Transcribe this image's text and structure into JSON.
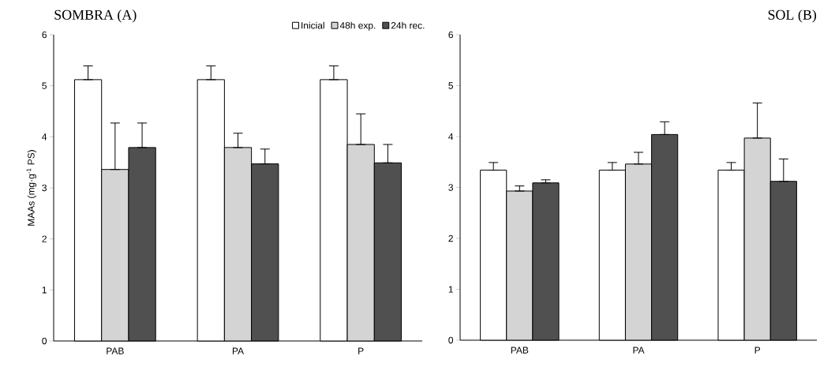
{
  "chart_data": [
    {
      "type": "bar",
      "title": "SOMBRA (A)",
      "ylabel": "MAAs (mg·g$^{-1}$ PS)",
      "categories": [
        "PAB",
        "PA",
        "P"
      ],
      "ylim": [
        0,
        6
      ],
      "yticks": [
        0,
        1,
        2,
        3,
        4,
        5,
        6
      ],
      "legend": "top",
      "series": [
        {
          "name": "Inicial",
          "color": "#ffffff",
          "values": [
            5.12,
            5.12,
            5.12
          ],
          "errors": [
            [
              5.12,
              5.39
            ],
            [
              5.12,
              5.39
            ],
            [
              5.12,
              5.39
            ]
          ]
        },
        {
          "name": "48h exp.",
          "color": "#d4d4d4",
          "values": [
            3.36,
            3.79,
            3.85
          ],
          "errors": [
            [
              3.36,
              4.27
            ],
            [
              3.79,
              4.07
            ],
            [
              3.85,
              4.45
            ]
          ]
        },
        {
          "name": "24h rec.",
          "color": "#505050",
          "values": [
            3.79,
            3.47,
            3.49
          ],
          "errors": [
            [
              3.79,
              4.27
            ],
            [
              3.47,
              3.76
            ],
            [
              3.49,
              3.85
            ]
          ]
        }
      ]
    },
    {
      "type": "bar",
      "title": "SOL (B)",
      "categories": [
        "PAB",
        "PA",
        "P"
      ],
      "ylim": [
        0,
        6
      ],
      "yticks": [
        0,
        1,
        2,
        3,
        4,
        5,
        6
      ],
      "series": [
        {
          "color": "#ffffff",
          "values": [
            3.34,
            3.34,
            3.34
          ],
          "errors": [
            [
              3.34,
              3.49
            ],
            [
              3.34,
              3.49
            ],
            [
              3.34,
              3.49
            ]
          ]
        },
        {
          "color": "#d4d4d4",
          "values": [
            2.93,
            3.46,
            3.97
          ],
          "errors": [
            [
              2.93,
              3.03
            ],
            [
              3.46,
              3.69
            ],
            [
              3.97,
              4.66
            ]
          ]
        },
        {
          "color": "#505050",
          "values": [
            3.09,
            4.04,
            3.12
          ],
          "errors": [
            [
              3.09,
              3.15
            ],
            [
              4.04,
              4.29
            ],
            [
              3.12,
              3.56
            ]
          ]
        }
      ]
    }
  ]
}
